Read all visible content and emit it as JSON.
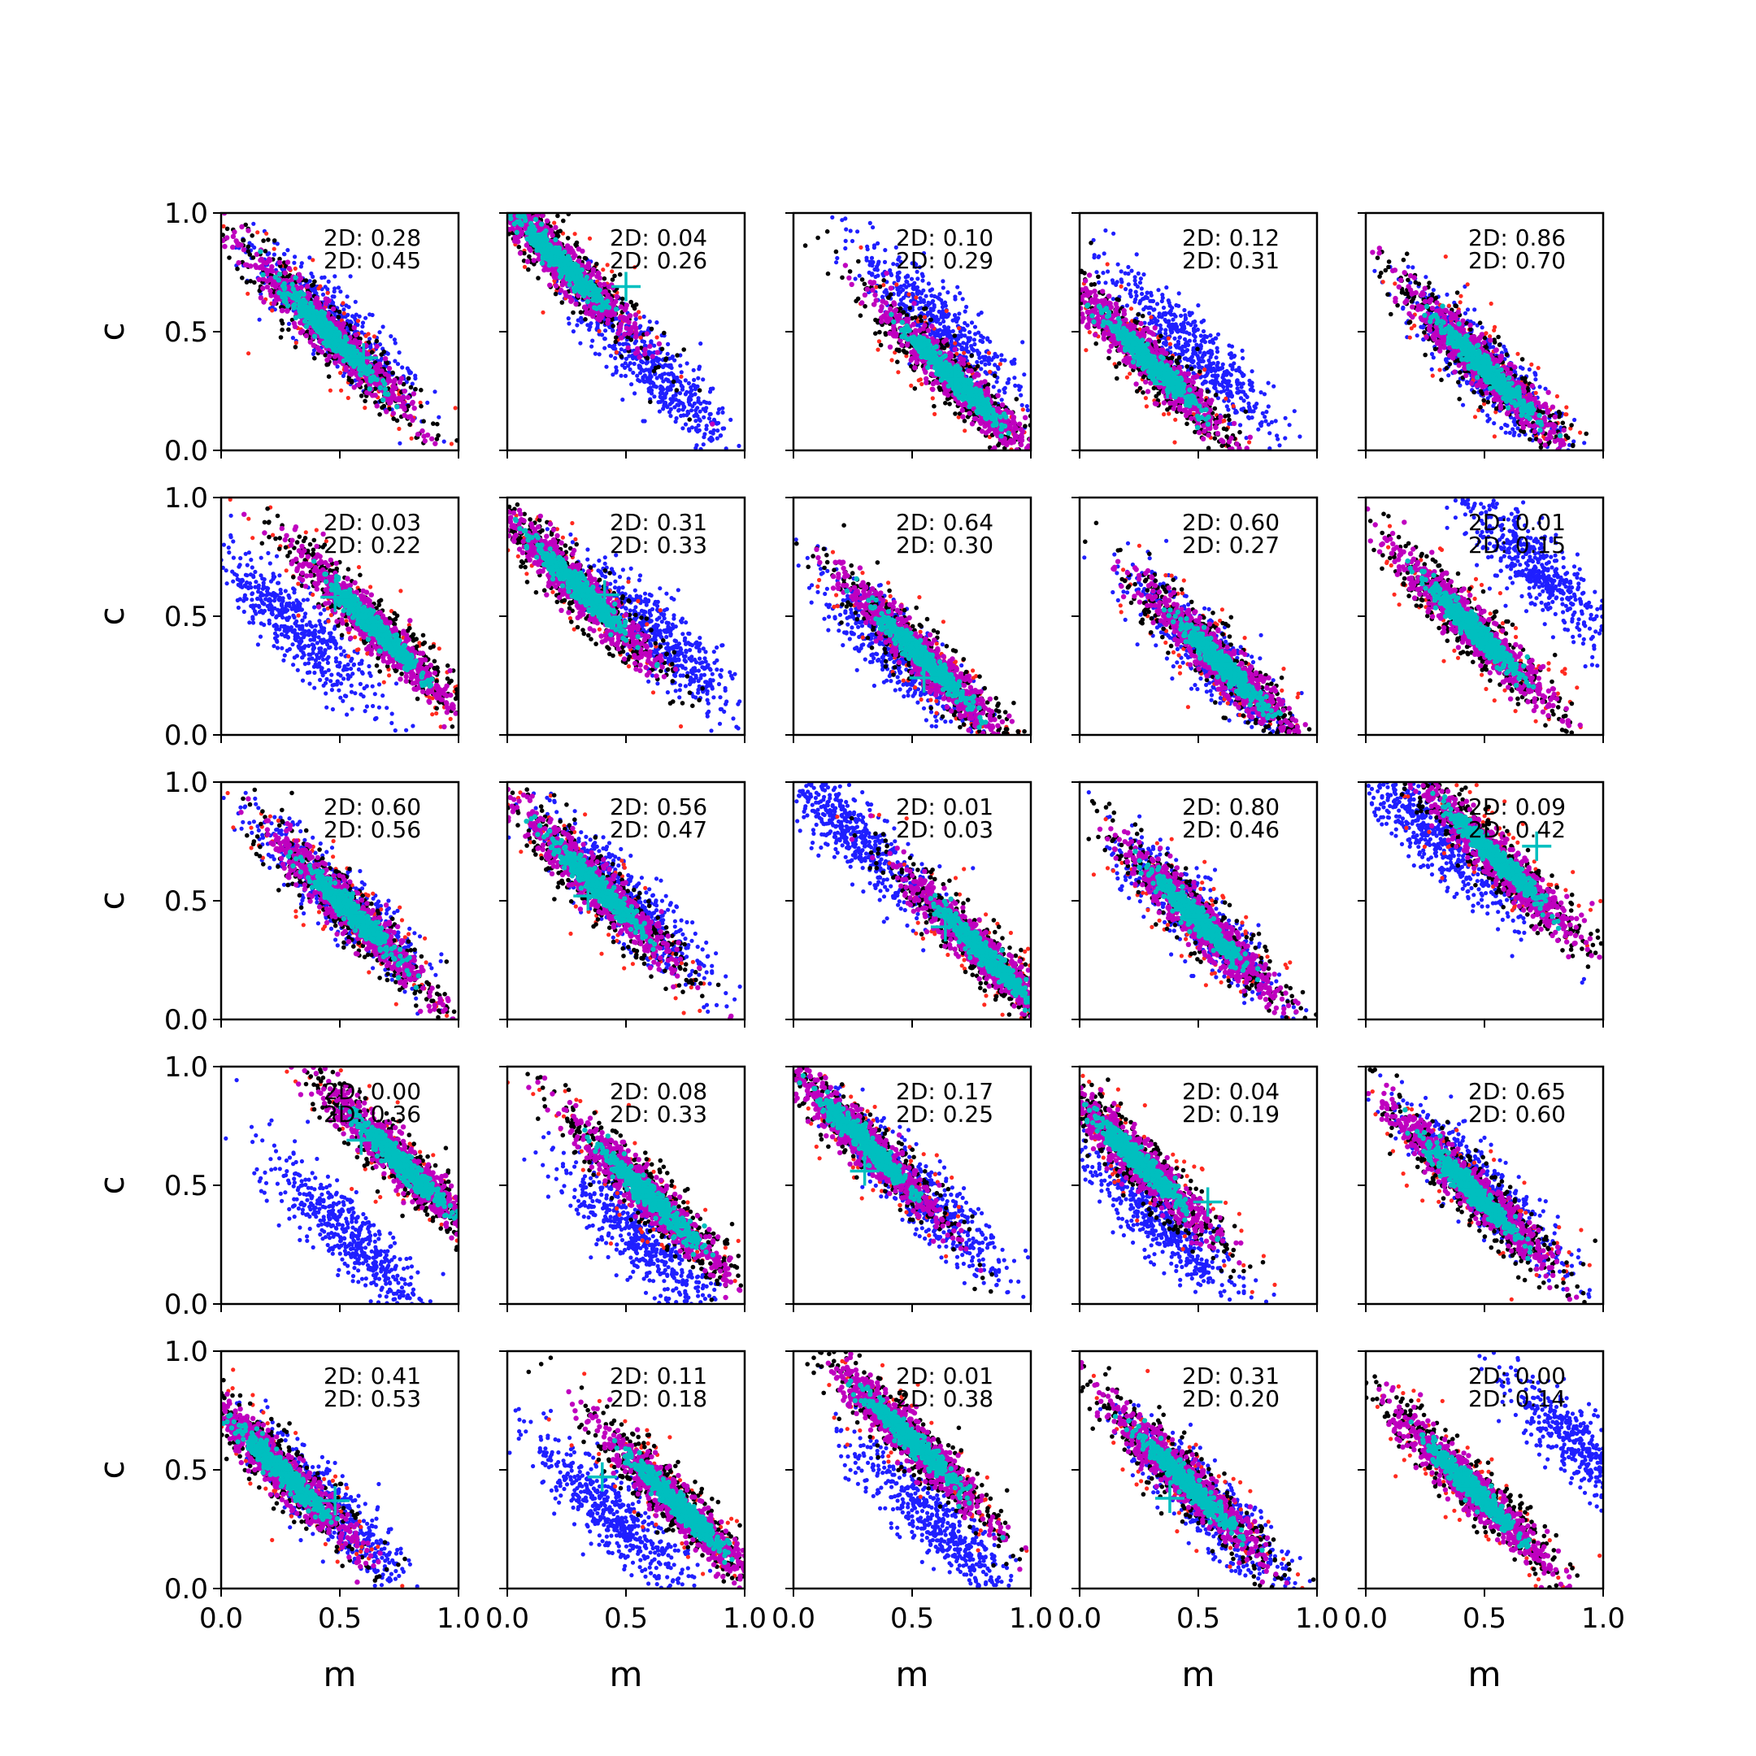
{
  "figure": {
    "xlabel": "m",
    "ylabel": "c",
    "xticks": [
      "0.0",
      "0.5",
      "1.0"
    ],
    "yticks": [
      "0.0",
      "0.5",
      "1.0"
    ],
    "xlim": [
      0,
      1
    ],
    "ylim": [
      0,
      1
    ],
    "annotation_prefix": "2D: "
  },
  "colors": {
    "blue": "#1f1fff",
    "red": "#ff2a1f",
    "black": "#000000",
    "magenta": "#bf00bf",
    "cyan": "#00bfbf",
    "marker": "#00bfbf"
  },
  "chart_data": {
    "type": "scatter",
    "grid": false,
    "rows": 5,
    "cols": 5,
    "series_colors": [
      "blue",
      "red",
      "black",
      "magenta",
      "cyan"
    ],
    "panels": [
      {
        "ann": [
          "0.28",
          "0.45"
        ],
        "blue": [
          0.48,
          0.52
        ],
        "main": [
          0.45,
          0.5
        ],
        "marker": [
          0.6,
          0.39
        ]
      },
      {
        "ann": [
          "0.04",
          "0.26"
        ],
        "blue": [
          0.6,
          0.36
        ],
        "main": [
          0.22,
          0.8
        ],
        "marker": [
          0.5,
          0.69
        ]
      },
      {
        "ann": [
          "0.10",
          "0.29"
        ],
        "blue": [
          0.62,
          0.52
        ],
        "main": [
          0.68,
          0.3
        ],
        "marker": [
          0.68,
          0.3
        ]
      },
      {
        "ann": [
          "0.12",
          "0.31"
        ],
        "blue": [
          0.48,
          0.42
        ],
        "main": [
          0.3,
          0.37
        ],
        "marker": [
          0.37,
          0.28
        ]
      },
      {
        "ann": [
          "0.86",
          "0.70"
        ],
        "blue": [
          0.5,
          0.35
        ],
        "main": [
          0.5,
          0.35
        ],
        "marker": [
          0.5,
          0.35
        ]
      },
      {
        "ann": [
          "0.03",
          "0.22"
        ],
        "blue": [
          0.3,
          0.47
        ],
        "main": [
          0.65,
          0.45
        ],
        "marker": [
          0.48,
          0.58
        ]
      },
      {
        "ann": [
          "0.31",
          "0.33"
        ],
        "blue": [
          0.65,
          0.4
        ],
        "main": [
          0.3,
          0.62
        ],
        "marker": [
          0.41,
          0.59
        ]
      },
      {
        "ann": [
          "0.64",
          "0.30"
        ],
        "blue": [
          0.45,
          0.34
        ],
        "main": [
          0.55,
          0.32
        ],
        "marker": [
          0.55,
          0.24
        ]
      },
      {
        "ann": [
          "0.60",
          "0.27"
        ],
        "blue": [
          0.55,
          0.33
        ],
        "main": [
          0.6,
          0.3
        ],
        "marker": [
          0.6,
          0.3
        ]
      },
      {
        "ann": [
          "0.01",
          "0.15"
        ],
        "blue": [
          0.72,
          0.7
        ],
        "main": [
          0.45,
          0.45
        ],
        "marker": [
          0.45,
          0.45
        ]
      },
      {
        "ann": [
          "0.60",
          "0.56"
        ],
        "blue": [
          0.5,
          0.5
        ],
        "main": [
          0.55,
          0.45
        ],
        "marker": [
          0.55,
          0.45
        ]
      },
      {
        "ann": [
          "0.56",
          "0.47"
        ],
        "blue": [
          0.5,
          0.5
        ],
        "main": [
          0.38,
          0.56
        ],
        "marker": [
          0.34,
          0.52
        ]
      },
      {
        "ann": [
          "0.01",
          "0.03"
        ],
        "blue": [
          0.25,
          0.78
        ],
        "main": [
          0.8,
          0.28
        ],
        "marker": [
          0.64,
          0.39
        ]
      },
      {
        "ann": [
          "0.80",
          "0.46"
        ],
        "blue": [
          0.5,
          0.42
        ],
        "main": [
          0.5,
          0.42
        ],
        "marker": [
          0.5,
          0.42
        ]
      },
      {
        "ann": [
          "0.09",
          "0.42"
        ],
        "blue": [
          0.3,
          0.76
        ],
        "main": [
          0.55,
          0.68
        ],
        "marker": [
          0.72,
          0.73
        ]
      },
      {
        "ann": [
          "0.00",
          "0.36"
        ],
        "blue": [
          0.55,
          0.28
        ],
        "main": [
          0.75,
          0.6
        ],
        "marker": [
          0.59,
          0.69
        ]
      },
      {
        "ann": [
          "0.08",
          "0.33"
        ],
        "blue": [
          0.55,
          0.28
        ],
        "main": [
          0.6,
          0.45
        ],
        "marker": [
          0.6,
          0.45
        ]
      },
      {
        "ann": [
          "0.17",
          "0.25"
        ],
        "blue": [
          0.55,
          0.45
        ],
        "main": [
          0.3,
          0.68
        ],
        "marker": [
          0.3,
          0.56
        ]
      },
      {
        "ann": [
          "0.04",
          "0.19"
        ],
        "blue": [
          0.33,
          0.35
        ],
        "main": [
          0.25,
          0.6
        ],
        "marker": [
          0.54,
          0.43
        ]
      },
      {
        "ann": [
          "0.65",
          "0.60"
        ],
        "blue": [
          0.5,
          0.48
        ],
        "main": [
          0.45,
          0.48
        ],
        "marker": [
          0.45,
          0.48
        ]
      },
      {
        "ann": [
          "0.41",
          "0.53"
        ],
        "blue": [
          0.45,
          0.35
        ],
        "main": [
          0.25,
          0.5
        ],
        "marker": [
          0.48,
          0.37
        ]
      },
      {
        "ann": [
          "0.11",
          "0.18"
        ],
        "blue": [
          0.45,
          0.3
        ],
        "main": [
          0.72,
          0.35
        ],
        "marker": [
          0.4,
          0.47
        ]
      },
      {
        "ann": [
          "0.01",
          "0.38"
        ],
        "blue": [
          0.6,
          0.27
        ],
        "main": [
          0.5,
          0.62
        ],
        "marker": [
          0.5,
          0.62
        ]
      },
      {
        "ann": [
          "0.31",
          "0.20"
        ],
        "blue": [
          0.55,
          0.35
        ],
        "main": [
          0.45,
          0.45
        ],
        "marker": [
          0.38,
          0.38
        ]
      },
      {
        "ann": [
          "0.00",
          "0.14"
        ],
        "blue": [
          0.9,
          0.6
        ],
        "main": [
          0.45,
          0.42
        ],
        "marker": [
          0.45,
          0.42
        ]
      }
    ]
  }
}
